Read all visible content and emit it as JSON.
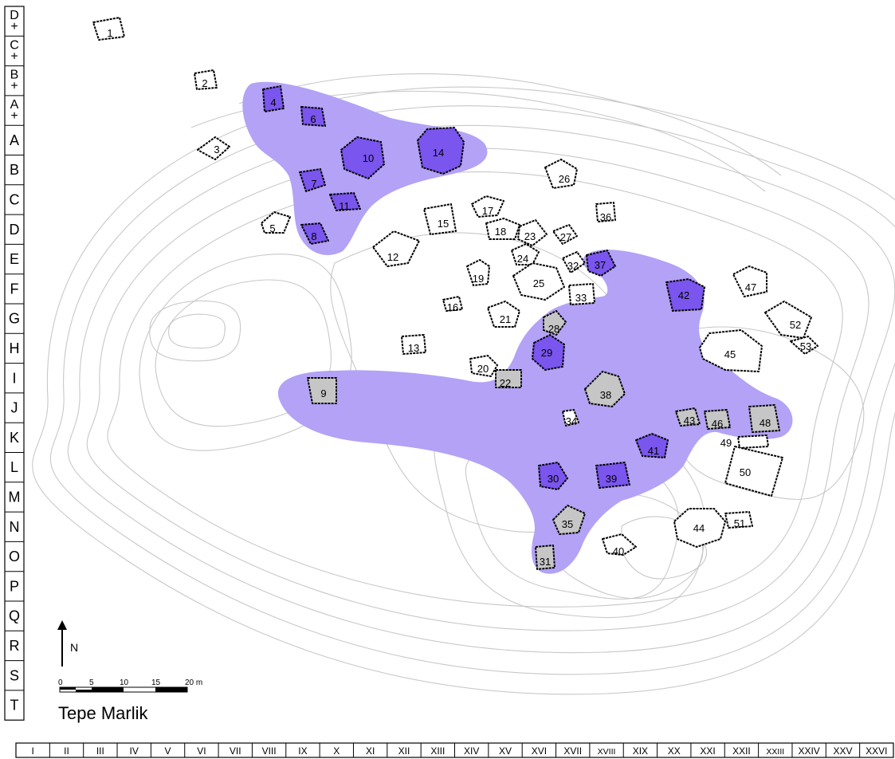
{
  "map": {
    "title": "Tepe Marlik",
    "north_label": "N",
    "scale_ticks": [
      "0",
      "5",
      "10",
      "15",
      "20 m"
    ],
    "colors": {
      "zone": "#b3a2f5",
      "zone_dark": "#7a55ee",
      "tomb_gray": "#c6c6c6",
      "contour": "#c8c8c8",
      "outline": "#000000"
    },
    "row_labels": [
      "D+",
      "C+",
      "B+",
      "A+",
      "A",
      "B",
      "C",
      "D",
      "E",
      "F",
      "G",
      "H",
      "I",
      "J",
      "K",
      "L",
      "M",
      "N",
      "O",
      "P",
      "Q",
      "R",
      "S",
      "T"
    ],
    "col_labels": [
      "I",
      "II",
      "III",
      "IV",
      "V",
      "VI",
      "VII",
      "VIII",
      "IX",
      "X",
      "XI",
      "XII",
      "XIII",
      "XIV",
      "XV",
      "XVI",
      "XVII",
      "XVIII",
      "XIX",
      "XX",
      "XXI",
      "XXII",
      "XXIII",
      "XXIV",
      "XXV",
      "XXVI"
    ],
    "tomb_fill_legend": {
      "purple": "dark",
      "gray": "gray",
      "white": "none"
    },
    "tombs": [
      {
        "label": "1",
        "fill": "none"
      },
      {
        "label": "2",
        "fill": "none"
      },
      {
        "label": "3",
        "fill": "none"
      },
      {
        "label": "4",
        "fill": "purple"
      },
      {
        "label": "5",
        "fill": "none"
      },
      {
        "label": "6",
        "fill": "purple"
      },
      {
        "label": "7",
        "fill": "purple"
      },
      {
        "label": "8",
        "fill": "purple"
      },
      {
        "label": "9",
        "fill": "gray"
      },
      {
        "label": "10",
        "fill": "purple"
      },
      {
        "label": "11",
        "fill": "purple"
      },
      {
        "label": "12",
        "fill": "none"
      },
      {
        "label": "13",
        "fill": "none"
      },
      {
        "label": "14",
        "fill": "purple"
      },
      {
        "label": "15",
        "fill": "none"
      },
      {
        "label": "16",
        "fill": "none"
      },
      {
        "label": "17",
        "fill": "none"
      },
      {
        "label": "18",
        "fill": "none"
      },
      {
        "label": "19",
        "fill": "none"
      },
      {
        "label": "20",
        "fill": "none"
      },
      {
        "label": "21",
        "fill": "none"
      },
      {
        "label": "22",
        "fill": "gray"
      },
      {
        "label": "23",
        "fill": "none"
      },
      {
        "label": "24",
        "fill": "none"
      },
      {
        "label": "25",
        "fill": "none"
      },
      {
        "label": "26",
        "fill": "none"
      },
      {
        "label": "27",
        "fill": "none"
      },
      {
        "label": "28",
        "fill": "gray"
      },
      {
        "label": "29",
        "fill": "purple"
      },
      {
        "label": "30",
        "fill": "purple"
      },
      {
        "label": "31",
        "fill": "gray"
      },
      {
        "label": "32",
        "fill": "none"
      },
      {
        "label": "33",
        "fill": "none"
      },
      {
        "label": "34",
        "fill": "none"
      },
      {
        "label": "35",
        "fill": "gray"
      },
      {
        "label": "36",
        "fill": "none"
      },
      {
        "label": "37",
        "fill": "purple"
      },
      {
        "label": "38",
        "fill": "gray"
      },
      {
        "label": "39",
        "fill": "purple"
      },
      {
        "label": "40",
        "fill": "none"
      },
      {
        "label": "41",
        "fill": "purple"
      },
      {
        "label": "42",
        "fill": "purple"
      },
      {
        "label": "43",
        "fill": "gray"
      },
      {
        "label": "44",
        "fill": "none"
      },
      {
        "label": "45",
        "fill": "none"
      },
      {
        "label": "46",
        "fill": "gray"
      },
      {
        "label": "47",
        "fill": "none"
      },
      {
        "label": "48",
        "fill": "gray"
      },
      {
        "label": "49",
        "fill": "none"
      },
      {
        "label": "50",
        "fill": "none"
      },
      {
        "label": "51",
        "fill": "none"
      },
      {
        "label": "52",
        "fill": "none"
      },
      {
        "label": "53",
        "fill": "none"
      }
    ]
  }
}
